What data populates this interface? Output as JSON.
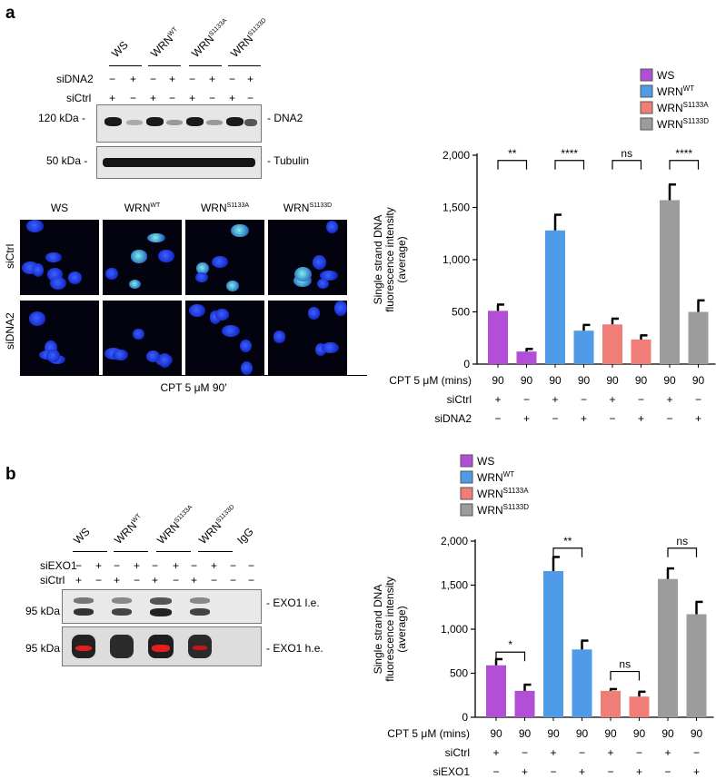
{
  "panel_a": {
    "letter": "a",
    "blot": {
      "lanes": [
        {
          "main": "WS",
          "sup": ""
        },
        {
          "main": "WRN",
          "sup": "WT"
        },
        {
          "main": "WRN",
          "sup": "S1133A"
        },
        {
          "main": "WRN",
          "sup": "S1133D"
        }
      ],
      "row_labels": [
        "siDNA2",
        "siCtrl"
      ],
      "siDNA2_marks": [
        "−",
        "+",
        "−",
        "+",
        "−",
        "+",
        "−",
        "+"
      ],
      "siCtrl_marks": [
        "+",
        "−",
        "+",
        "−",
        "+",
        "−",
        "+",
        "−"
      ],
      "mw_top": "120 kDa -",
      "mw_bottom": "50 kDa -",
      "label_top": "- DNA2",
      "label_bottom": "- Tubulin"
    },
    "micro": {
      "cols": [
        {
          "main": "WS",
          "sup": ""
        },
        {
          "main": "WRN",
          "sup": "WT"
        },
        {
          "main": "WRN",
          "sup": "S1133A"
        },
        {
          "main": "WRN",
          "sup": "S1133D"
        }
      ],
      "rows": [
        "siCtrl",
        "siDNA2"
      ],
      "treatment": "CPT 5 μM 90′"
    },
    "chart_data": {
      "type": "bar",
      "ylabel_lines": [
        "Single strand DNA",
        "fluorescence intensity",
        "(average)"
      ],
      "ylim": [
        0,
        2000
      ],
      "yticks": [
        "0",
        "500",
        "1,000",
        "1,500",
        "2,000"
      ],
      "ytick_values": [
        0,
        500,
        1000,
        1500,
        2000
      ],
      "legend": [
        {
          "main": "WS",
          "sup": "",
          "color": "#b24fd6"
        },
        {
          "main": "WRN",
          "sup": "WT",
          "color": "#4f9be8"
        },
        {
          "main": "WRN",
          "sup": "S1133A",
          "color": "#f07d78"
        },
        {
          "main": "WRN",
          "sup": "S1133D",
          "color": "#9c9c9c"
        }
      ],
      "values": [
        510,
        120,
        1280,
        320,
        380,
        235,
        1570,
        500
      ],
      "errors": [
        60,
        25,
        150,
        55,
        55,
        40,
        150,
        110
      ],
      "bar_colors": [
        "#b24fd6",
        "#b24fd6",
        "#4f9be8",
        "#4f9be8",
        "#f07d78",
        "#f07d78",
        "#9c9c9c",
        "#9c9c9c"
      ],
      "significance": [
        {
          "pair": [
            0,
            1
          ],
          "label": "**",
          "y": 1950
        },
        {
          "pair": [
            2,
            3
          ],
          "label": "****",
          "y": 1950
        },
        {
          "pair": [
            4,
            5
          ],
          "label": "ns",
          "y": 1950
        },
        {
          "pair": [
            6,
            7
          ],
          "label": "****",
          "y": 1950
        }
      ],
      "table_rows": [
        {
          "label": "CPT 5 μM (mins)",
          "cells": [
            "90",
            "90",
            "90",
            "90",
            "90",
            "90",
            "90",
            "90"
          ]
        },
        {
          "label": "siCtrl",
          "cells": [
            "+",
            "−",
            "+",
            "−",
            "+",
            "−",
            "+",
            "−"
          ]
        },
        {
          "label": "siDNA2",
          "cells": [
            "−",
            "+",
            "−",
            "+",
            "−",
            "+",
            "−",
            "+"
          ]
        }
      ]
    }
  },
  "panel_b": {
    "letter": "b",
    "blot": {
      "lanes": [
        {
          "main": "WS",
          "sup": ""
        },
        {
          "main": "WRN",
          "sup": "WT"
        },
        {
          "main": "WRN",
          "sup": "S1133A"
        },
        {
          "main": "WRN",
          "sup": "S1133D"
        },
        {
          "main": "IgG",
          "sup": ""
        }
      ],
      "row_labels": [
        "siEXO1",
        "siCtrl"
      ],
      "siEXO1_marks": [
        "−",
        "+",
        "−",
        "+",
        "−",
        "+",
        "−",
        "+",
        "−",
        "−"
      ],
      "siCtrl_marks": [
        "+",
        "−",
        "+",
        "−",
        "+",
        "−",
        "+",
        "−",
        "−",
        "−"
      ],
      "mw_top": "95 kDa -",
      "mw_bottom": "95 kDa -",
      "label_top": "- EXO1 l.e.",
      "label_bottom": "- EXO1 h.e."
    },
    "chart_data": {
      "type": "bar",
      "ylabel_lines": [
        "Single strand DNA",
        "fluorescence intensity",
        "(average)"
      ],
      "ylim": [
        0,
        2000
      ],
      "yticks": [
        "0",
        "500",
        "1,000",
        "1,500",
        "2,000"
      ],
      "ytick_values": [
        0,
        500,
        1000,
        1500,
        2000
      ],
      "legend": [
        {
          "main": "WS",
          "sup": "",
          "color": "#b24fd6"
        },
        {
          "main": "WRN",
          "sup": "WT",
          "color": "#4f9be8"
        },
        {
          "main": "WRN",
          "sup": "S1133A",
          "color": "#f07d78"
        },
        {
          "main": "WRN",
          "sup": "S1133D",
          "color": "#9c9c9c"
        }
      ],
      "values": [
        590,
        300,
        1660,
        770,
        300,
        235,
        1570,
        1170
      ],
      "errors": [
        70,
        70,
        160,
        100,
        20,
        55,
        120,
        140
      ],
      "bar_colors": [
        "#b24fd6",
        "#b24fd6",
        "#4f9be8",
        "#4f9be8",
        "#f07d78",
        "#f07d78",
        "#9c9c9c",
        "#9c9c9c"
      ],
      "significance": [
        {
          "pair": [
            0,
            1
          ],
          "label": "*",
          "y": 740
        },
        {
          "pair": [
            2,
            3
          ],
          "label": "**",
          "y": 1920
        },
        {
          "pair": [
            4,
            5
          ],
          "label": "ns",
          "y": 520
        },
        {
          "pair": [
            6,
            7
          ],
          "label": "ns",
          "y": 1920
        }
      ],
      "table_rows": [
        {
          "label": "CPT 5 μM (mins)",
          "cells": [
            "90",
            "90",
            "90",
            "90",
            "90",
            "90",
            "90",
            "90"
          ]
        },
        {
          "label": "siCtrl",
          "cells": [
            "+",
            "−",
            "+",
            "−",
            "+",
            "−",
            "+",
            "−"
          ]
        },
        {
          "label": "siEXO1",
          "cells": [
            "−",
            "+",
            "−",
            "+",
            "−",
            "+",
            "−",
            "+"
          ]
        }
      ]
    }
  }
}
